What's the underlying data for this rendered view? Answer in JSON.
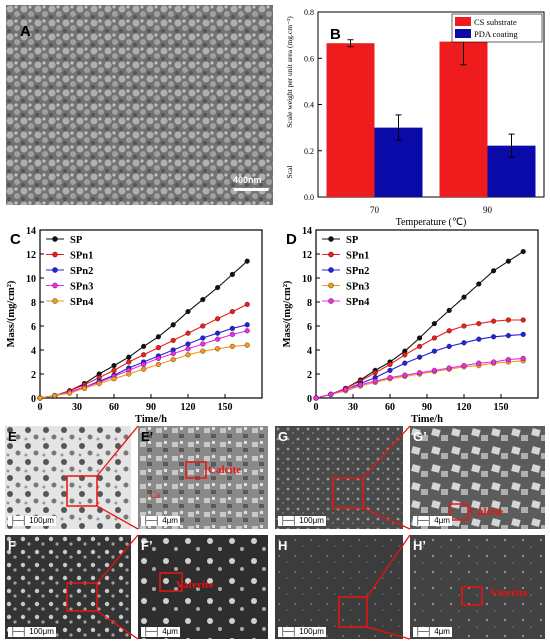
{
  "panels": {
    "a": {
      "letter": "A",
      "scale": "400nm"
    },
    "e": {
      "letter": "E",
      "scale": "100μm"
    },
    "e2": {
      "letter": "E’",
      "scale": "4μm",
      "label": "Calcite",
      "small": "Ca"
    },
    "f": {
      "letter": "F",
      "scale": "100μm"
    },
    "f2": {
      "letter": "F’",
      "scale": "4μm",
      "label": "Vaterite"
    },
    "g": {
      "letter": "G",
      "scale": "100μm"
    },
    "g2": {
      "letter": "G’",
      "scale": "4μm",
      "label": "Calcite"
    },
    "h": {
      "letter": "H",
      "scale": "100μm"
    },
    "h2": {
      "letter": "H’",
      "scale": "4μm",
      "label": "Vaterite"
    }
  },
  "colors": {
    "red": "#ee1c1c",
    "blue": "#0a0aa8",
    "black": "#111111",
    "orange": "#f39a1e",
    "magenta": "#ee2be6",
    "blue2": "#2222dd"
  },
  "chart_data": [
    {
      "id": "B",
      "letter": "B",
      "type": "bar",
      "categories": [
        "70",
        "90"
      ],
      "series": [
        {
          "name": "CS substrate",
          "color": "#ee1c1c",
          "values": [
            0.665,
            0.672
          ],
          "errors": [
            0.015,
            0.1
          ]
        },
        {
          "name": "PDA coating",
          "color": "#0a0aa8",
          "values": [
            0.3,
            0.222
          ],
          "errors": [
            0.055,
            0.05
          ]
        }
      ],
      "ylim": [
        0.0,
        0.8
      ],
      "yticks": [
        "0.0",
        "0.2",
        "0.4",
        "0.6",
        "0.8"
      ],
      "xlabel": "Temperature (℃)",
      "ylabel": "Scale weight per unit area (mg.cm⁻²)",
      "ylabel_extra": "Scal",
      "legend": "top-right"
    },
    {
      "id": "C",
      "letter": "C",
      "type": "line",
      "xlim": [
        0,
        180
      ],
      "ylim": [
        0,
        14
      ],
      "xticks": [
        "0",
        "30",
        "60",
        "90",
        "120",
        "150"
      ],
      "yticks": [
        "0",
        "2",
        "4",
        "6",
        "8",
        "10",
        "12",
        "14"
      ],
      "xlabel": "Time/h",
      "ylabel": "Mass/(mg/cm²)",
      "legend": "top-left",
      "x": [
        0,
        12,
        24,
        36,
        48,
        60,
        72,
        84,
        96,
        108,
        120,
        132,
        144,
        156,
        168
      ],
      "series": [
        {
          "name": "SP",
          "color": "#111111",
          "values": [
            0,
            0.2,
            0.6,
            1.2,
            2.0,
            2.7,
            3.4,
            4.3,
            5.1,
            6.1,
            7.2,
            8.2,
            9.2,
            10.3,
            11.4
          ]
        },
        {
          "name": "SPn1",
          "color": "#ee1c1c",
          "values": [
            0,
            0.2,
            0.6,
            1.1,
            1.7,
            2.3,
            3.0,
            3.6,
            4.2,
            4.8,
            5.4,
            6.0,
            6.6,
            7.2,
            7.8
          ]
        },
        {
          "name": "SPn2",
          "color": "#2222dd",
          "values": [
            0,
            0.2,
            0.5,
            0.9,
            1.4,
            1.9,
            2.5,
            3.0,
            3.5,
            4.0,
            4.5,
            5.0,
            5.4,
            5.8,
            6.1
          ]
        },
        {
          "name": "SPn3",
          "color": "#ee2be6",
          "values": [
            0,
            0.2,
            0.5,
            0.9,
            1.3,
            1.8,
            2.3,
            2.8,
            3.3,
            3.7,
            4.1,
            4.5,
            4.9,
            5.3,
            5.6
          ]
        },
        {
          "name": "SPn4",
          "color": "#f39a1e",
          "values": [
            0,
            0.2,
            0.4,
            0.8,
            1.2,
            1.6,
            2.0,
            2.4,
            2.8,
            3.2,
            3.6,
            3.9,
            4.1,
            4.3,
            4.4
          ]
        }
      ]
    },
    {
      "id": "D",
      "letter": "D",
      "type": "line",
      "xlim": [
        0,
        180
      ],
      "ylim": [
        0,
        14
      ],
      "xticks": [
        "0",
        "30",
        "60",
        "90",
        "120",
        "150"
      ],
      "yticks": [
        "0",
        "2",
        "4",
        "6",
        "8",
        "10",
        "12",
        "14"
      ],
      "xlabel": "Time/h",
      "ylabel": "Mass/(mg/cm²)",
      "legend": "top-left",
      "x": [
        0,
        12,
        24,
        36,
        48,
        60,
        72,
        84,
        96,
        108,
        120,
        132,
        144,
        156,
        168
      ],
      "series": [
        {
          "name": "SP",
          "color": "#111111",
          "values": [
            0,
            0.3,
            0.8,
            1.5,
            2.3,
            3.0,
            3.9,
            5.0,
            6.2,
            7.3,
            8.4,
            9.5,
            10.6,
            11.4,
            12.2
          ]
        },
        {
          "name": "SPn1",
          "color": "#ee1c1c",
          "values": [
            0,
            0.3,
            0.8,
            1.4,
            2.1,
            2.8,
            3.6,
            4.3,
            5.0,
            5.6,
            6.0,
            6.2,
            6.4,
            6.5,
            6.5
          ]
        },
        {
          "name": "SPn2",
          "color": "#2222dd",
          "values": [
            0,
            0.3,
            0.7,
            1.2,
            1.7,
            2.3,
            2.9,
            3.4,
            3.9,
            4.3,
            4.6,
            4.9,
            5.1,
            5.2,
            5.3
          ]
        },
        {
          "name": "SPn3",
          "color": "#f39a1e",
          "values": [
            0,
            0.3,
            0.6,
            1.0,
            1.3,
            1.6,
            1.8,
            2.0,
            2.2,
            2.4,
            2.6,
            2.7,
            2.9,
            3.0,
            3.1
          ]
        },
        {
          "name": "SPn4",
          "color": "#ee2be6",
          "values": [
            0,
            0.3,
            0.7,
            1.1,
            1.4,
            1.7,
            1.9,
            2.1,
            2.3,
            2.5,
            2.7,
            2.9,
            3.0,
            3.2,
            3.3
          ]
        }
      ]
    }
  ]
}
